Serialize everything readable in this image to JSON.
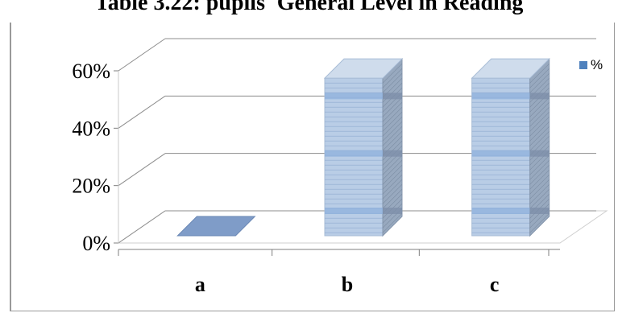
{
  "chart_data": {
    "type": "bar",
    "title": "Table 3.22: pupils' General Level in Reading",
    "categories": [
      "a",
      "b",
      "c"
    ],
    "series": [
      {
        "name": "%",
        "values": [
          0,
          50,
          50
        ]
      }
    ],
    "ylim": [
      0,
      60
    ],
    "yticks": [
      "0%",
      "20%",
      "40%",
      "60%"
    ],
    "xlabel": "",
    "ylabel": "",
    "grid": true,
    "legend": "top-right",
    "colors": {
      "bar_front": "#b9cde6",
      "bar_side": "#98a9bf",
      "bar_top": "#cfdcec",
      "bar_line": "#7f9cc8",
      "band": "#8fb0dc",
      "legend": "#4f81bd",
      "grid": "#8c8c8c"
    }
  }
}
